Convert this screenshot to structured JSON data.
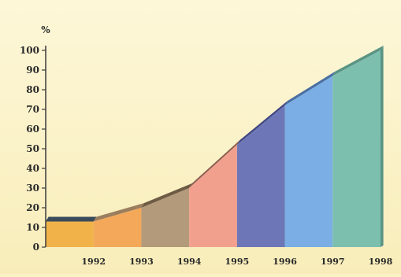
{
  "chart_data": {
    "type": "area",
    "title": "",
    "ylabel": "%",
    "xlabel": "",
    "categories": [
      "1992",
      "1993",
      "1994",
      "1995",
      "1996",
      "1997",
      "1998"
    ],
    "values": [
      13,
      20,
      30,
      52,
      72,
      87,
      100
    ],
    "ylim": [
      0,
      100
    ],
    "yticks": [
      0,
      10,
      20,
      30,
      40,
      50,
      60,
      70,
      80,
      90,
      100
    ],
    "grid": false,
    "segment_colors": [
      "#f1b24a",
      "#f3a85a",
      "#b39a7a",
      "#f2a08e",
      "#6d76b6",
      "#7aaee4",
      "#7dbfae"
    ],
    "top_colors": [
      "#3a4a5a",
      "#9a7e5e",
      "#6e5b45",
      "#8a5d50",
      "#3f4582",
      "#4a6fa3",
      "#5a9484"
    ]
  }
}
